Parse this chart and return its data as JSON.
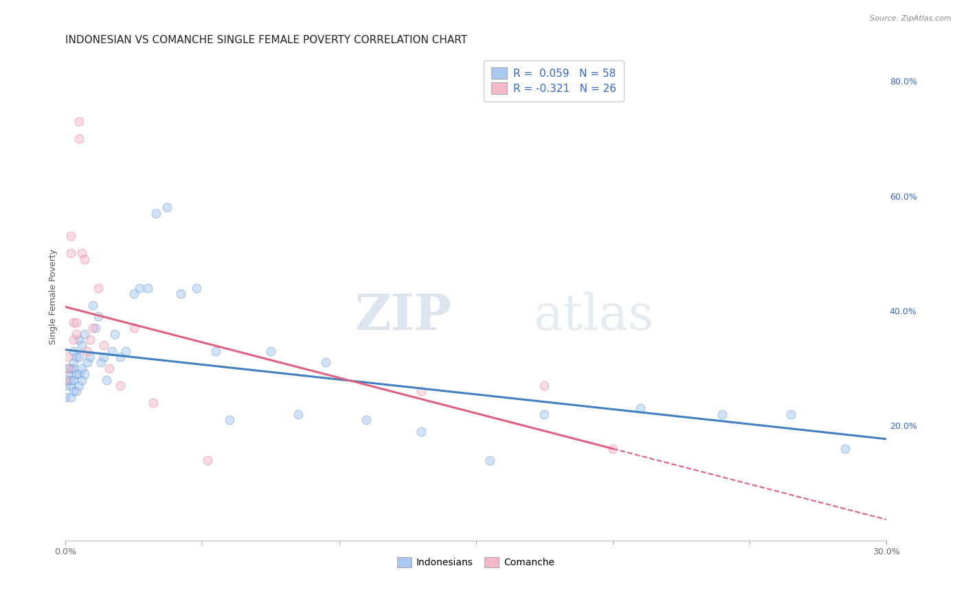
{
  "title": "INDONESIAN VS COMANCHE SINGLE FEMALE POVERTY CORRELATION CHART",
  "source": "Source: ZipAtlas.com",
  "ylabel": "Single Female Poverty",
  "legend_indonesian": "R =  0.059   N = 58",
  "legend_comanche": "R = -0.321   N = 26",
  "legend_label1": "Indonesians",
  "legend_label2": "Comanche",
  "color_indonesian": "#a8c8f0",
  "color_comanche": "#f5b8c8",
  "line_color_indonesian": "#4080c0",
  "line_color_comanche": "#e06080",
  "legend_text_color": "#3366cc",
  "watermark_zip": "ZIP",
  "watermark_atlas": "atlas",
  "right_yticks": [
    "20.0%",
    "40.0%",
    "60.0%",
    "80.0%"
  ],
  "right_ytick_vals": [
    0.2,
    0.4,
    0.6,
    0.8
  ],
  "indonesian_x": [
    0.0,
    0.0,
    0.001,
    0.001,
    0.001,
    0.002,
    0.002,
    0.002,
    0.002,
    0.003,
    0.003,
    0.003,
    0.003,
    0.003,
    0.004,
    0.004,
    0.004,
    0.005,
    0.005,
    0.005,
    0.005,
    0.006,
    0.006,
    0.006,
    0.007,
    0.007,
    0.008,
    0.009,
    0.01,
    0.011,
    0.012,
    0.013,
    0.014,
    0.015,
    0.017,
    0.018,
    0.02,
    0.022,
    0.025,
    0.027,
    0.03,
    0.033,
    0.037,
    0.042,
    0.048,
    0.055,
    0.06,
    0.075,
    0.085,
    0.095,
    0.11,
    0.13,
    0.155,
    0.175,
    0.21,
    0.24,
    0.265,
    0.285
  ],
  "indonesian_y": [
    0.25,
    0.27,
    0.28,
    0.29,
    0.3,
    0.25,
    0.27,
    0.28,
    0.3,
    0.26,
    0.28,
    0.3,
    0.31,
    0.33,
    0.26,
    0.29,
    0.32,
    0.27,
    0.29,
    0.32,
    0.35,
    0.28,
    0.3,
    0.34,
    0.29,
    0.36,
    0.31,
    0.32,
    0.41,
    0.37,
    0.39,
    0.31,
    0.32,
    0.28,
    0.33,
    0.36,
    0.32,
    0.33,
    0.43,
    0.44,
    0.44,
    0.57,
    0.58,
    0.43,
    0.44,
    0.33,
    0.21,
    0.33,
    0.22,
    0.31,
    0.21,
    0.19,
    0.14,
    0.22,
    0.23,
    0.22,
    0.22,
    0.16
  ],
  "comanche_x": [
    0.0,
    0.001,
    0.001,
    0.002,
    0.002,
    0.003,
    0.003,
    0.004,
    0.004,
    0.005,
    0.005,
    0.006,
    0.007,
    0.008,
    0.009,
    0.01,
    0.012,
    0.014,
    0.016,
    0.02,
    0.025,
    0.032,
    0.052,
    0.13,
    0.175,
    0.2
  ],
  "comanche_y": [
    0.28,
    0.3,
    0.32,
    0.5,
    0.53,
    0.35,
    0.38,
    0.38,
    0.36,
    0.7,
    0.73,
    0.5,
    0.49,
    0.33,
    0.35,
    0.37,
    0.44,
    0.34,
    0.3,
    0.27,
    0.37,
    0.24,
    0.14,
    0.26,
    0.27,
    0.16
  ],
  "xlim": [
    0.0,
    0.3
  ],
  "ylim": [
    0.0,
    0.85
  ],
  "background_color": "#ffffff",
  "grid_color": "#d8dde8",
  "title_fontsize": 11,
  "axis_fontsize": 9,
  "marker_size": 85,
  "marker_alpha": 0.5
}
